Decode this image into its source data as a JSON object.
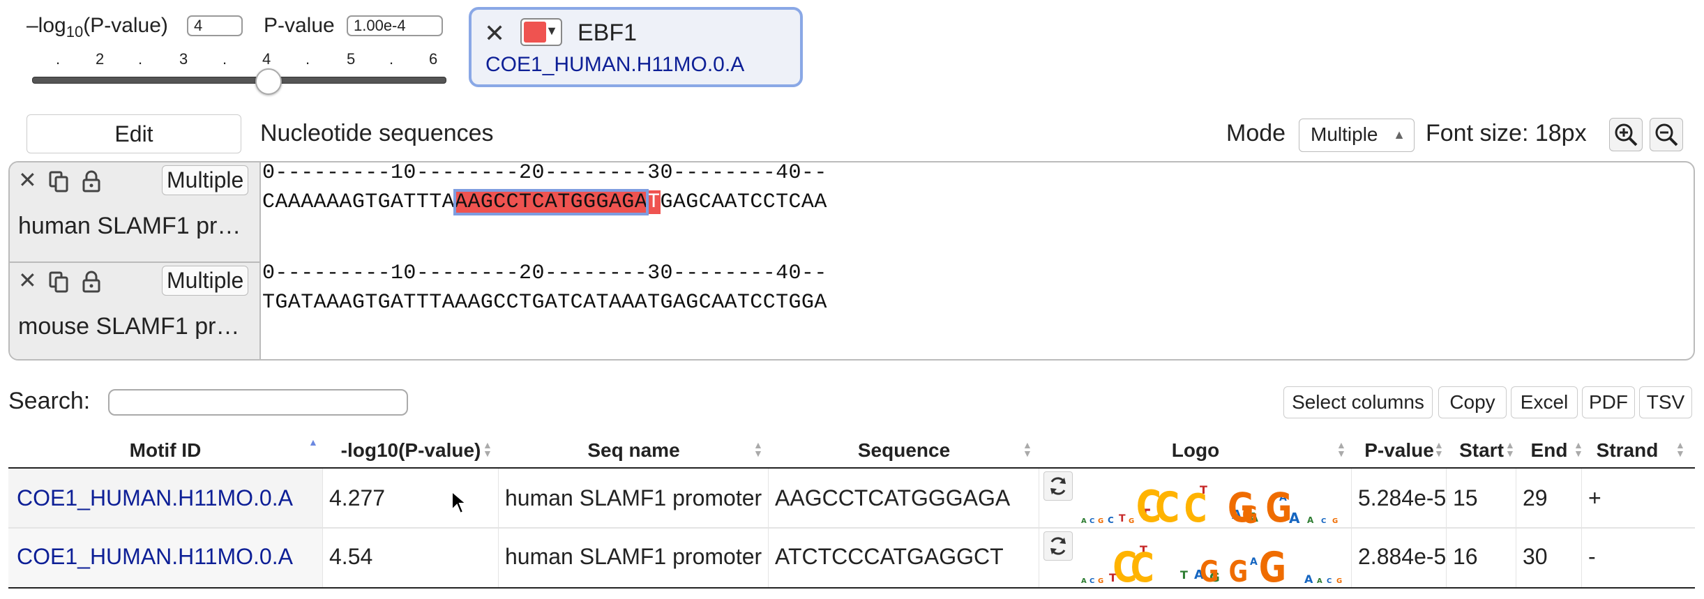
{
  "controls": {
    "log_label_prefix": "–log",
    "log_label_sub": "10",
    "log_label_suffix": "(P-value)",
    "log_value": "4",
    "pvalue_label": "P-value",
    "pvalue_value": "1.00e-4",
    "slider_ticks": [
      ".",
      "2",
      ".",
      "3",
      ".",
      "4",
      ".",
      "5",
      ".",
      "6"
    ],
    "slider_value": 4
  },
  "motif_chip": {
    "close_symbol": "✕",
    "color": "#ef5350",
    "name": "EBF1",
    "motif_id": "COE1_HUMAN.H11MO.0.A"
  },
  "toolbar": {
    "edit_label": "Edit",
    "section_title": "Nucleotide sequences",
    "mode_label": "Mode",
    "mode_value": "Multiple",
    "font_size_label": "Font size: 18px"
  },
  "sequences": [
    {
      "name": "human SLAMF1 pr…",
      "mode_label": "Multiple",
      "ruler": "0---------10--------20--------30--------40--",
      "seq_pre": "CAAAAAAGTGATTTA",
      "seq_boxed": "AAGCCTCATGGGAGA",
      "seq_red_tail": "T",
      "seq_post": "GAGCAATCCTCAA"
    },
    {
      "name": "mouse SLAMF1 pr…",
      "mode_label": "Multiple",
      "ruler": "0---------10--------20--------30--------40--",
      "sequence": "TGATAAAGTGATTTAAAGCCTGATCATAAATGAGCAATCCTGGA"
    }
  ],
  "search": {
    "label": "Search:",
    "value": ""
  },
  "export_buttons": [
    "Select columns",
    "Copy",
    "Excel",
    "PDF",
    "TSV"
  ],
  "table": {
    "columns": [
      "Motif ID",
      "-log10(P-value)",
      "Seq name",
      "Sequence",
      "Logo",
      "P-value",
      "Start",
      "End",
      "Strand"
    ],
    "rows": [
      {
        "motif_id": "COE1_HUMAN.H11MO.0.A",
        "neg_log_p": "4.277",
        "seq_name": "human SLAMF1 promoter",
        "sequence": "AAGCCTCATGGGAGA",
        "p_value": "5.284e-5",
        "start": "15",
        "end": "29",
        "strand": "+"
      },
      {
        "motif_id": "COE1_HUMAN.H11MO.0.A",
        "neg_log_p": "4.54",
        "seq_name": "human SLAMF1 promoter",
        "sequence": "ATCTCCCATGAGGCT",
        "p_value": "2.884e-5",
        "start": "16",
        "end": "30",
        "strand": "-"
      }
    ]
  },
  "colors": {
    "link": "#0d1f96",
    "highlight": "#ef5350",
    "chip_border": "#8aa8e6"
  }
}
